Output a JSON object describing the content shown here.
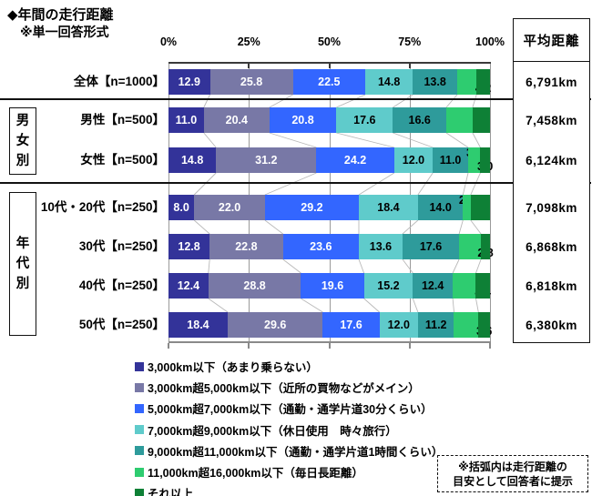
{
  "header": {
    "title": "◆年間の走行距離",
    "subtitle": "※単一回答形式"
  },
  "avg_column": {
    "header": "平均距離"
  },
  "note": {
    "line1": "※括弧内は走行距離の",
    "line2": "目安として回答者に提示"
  },
  "chart_data": {
    "type": "bar",
    "stacked": true,
    "orientation": "horizontal",
    "xlim": [
      0,
      100
    ],
    "axis_ticks": [
      "0%",
      "25%",
      "50%",
      "75%",
      "100%"
    ],
    "grid": true,
    "legend_position": "bottom",
    "categories": [
      "全体【n=1000】",
      "男性【n=500】",
      "女性【n=500】",
      "10代・20代【n=250】",
      "30代【n=250】",
      "40代【n=250】",
      "50代【n=250】"
    ],
    "row_groups": [
      {
        "label": "",
        "rows": [
          0
        ]
      },
      {
        "label": "男女別",
        "rows": [
          1,
          2
        ]
      },
      {
        "label": "年代別",
        "rows": [
          3,
          4,
          5,
          6
        ]
      }
    ],
    "series": [
      {
        "name": "3,000km以下（あまり乗らない）",
        "color": "#333399",
        "values": [
          12.9,
          11.0,
          14.8,
          8.0,
          12.8,
          12.4,
          18.4
        ]
      },
      {
        "name": "3,000km超5,000km以下（近所の買物などがメイン）",
        "color": "#7878A6",
        "values": [
          25.8,
          20.4,
          31.2,
          22.0,
          22.8,
          28.8,
          29.6
        ]
      },
      {
        "name": "5,000km超7,000km以下（通勤・通学片道30分くらい）",
        "color": "#3366FF",
        "values": [
          22.5,
          20.8,
          24.2,
          29.2,
          23.6,
          19.6,
          17.6
        ]
      },
      {
        "name": "7,000km超9,000km以下（休日使用　時々旅行）",
        "color": "#5FCBCB",
        "values": [
          14.8,
          17.6,
          12.0,
          18.4,
          13.6,
          15.2,
          12.0
        ]
      },
      {
        "name": "9,000km超11,000km以下（通勤・通学片道1時間くらい）",
        "color": "#2E9B9B",
        "values": [
          13.8,
          16.6,
          11.0,
          14.0,
          17.6,
          12.4,
          11.2
        ]
      },
      {
        "name": "11,000km超16,000km以下（毎日長距離）",
        "color": "#2ECC70",
        "values": [
          6.0,
          8.2,
          3.8,
          2.4,
          6.8,
          7.2,
          7.6
        ]
      },
      {
        "name": "それ以上",
        "color": "#0E8036",
        "values": [
          4.2,
          5.4,
          3.0,
          6.0,
          2.8,
          4.4,
          3.6
        ]
      }
    ],
    "averages": [
      "6,791km",
      "7,458km",
      "6,124km",
      "7,098km",
      "6,868km",
      "6,818km",
      "6,380km"
    ],
    "averages_label": "平均距離"
  }
}
